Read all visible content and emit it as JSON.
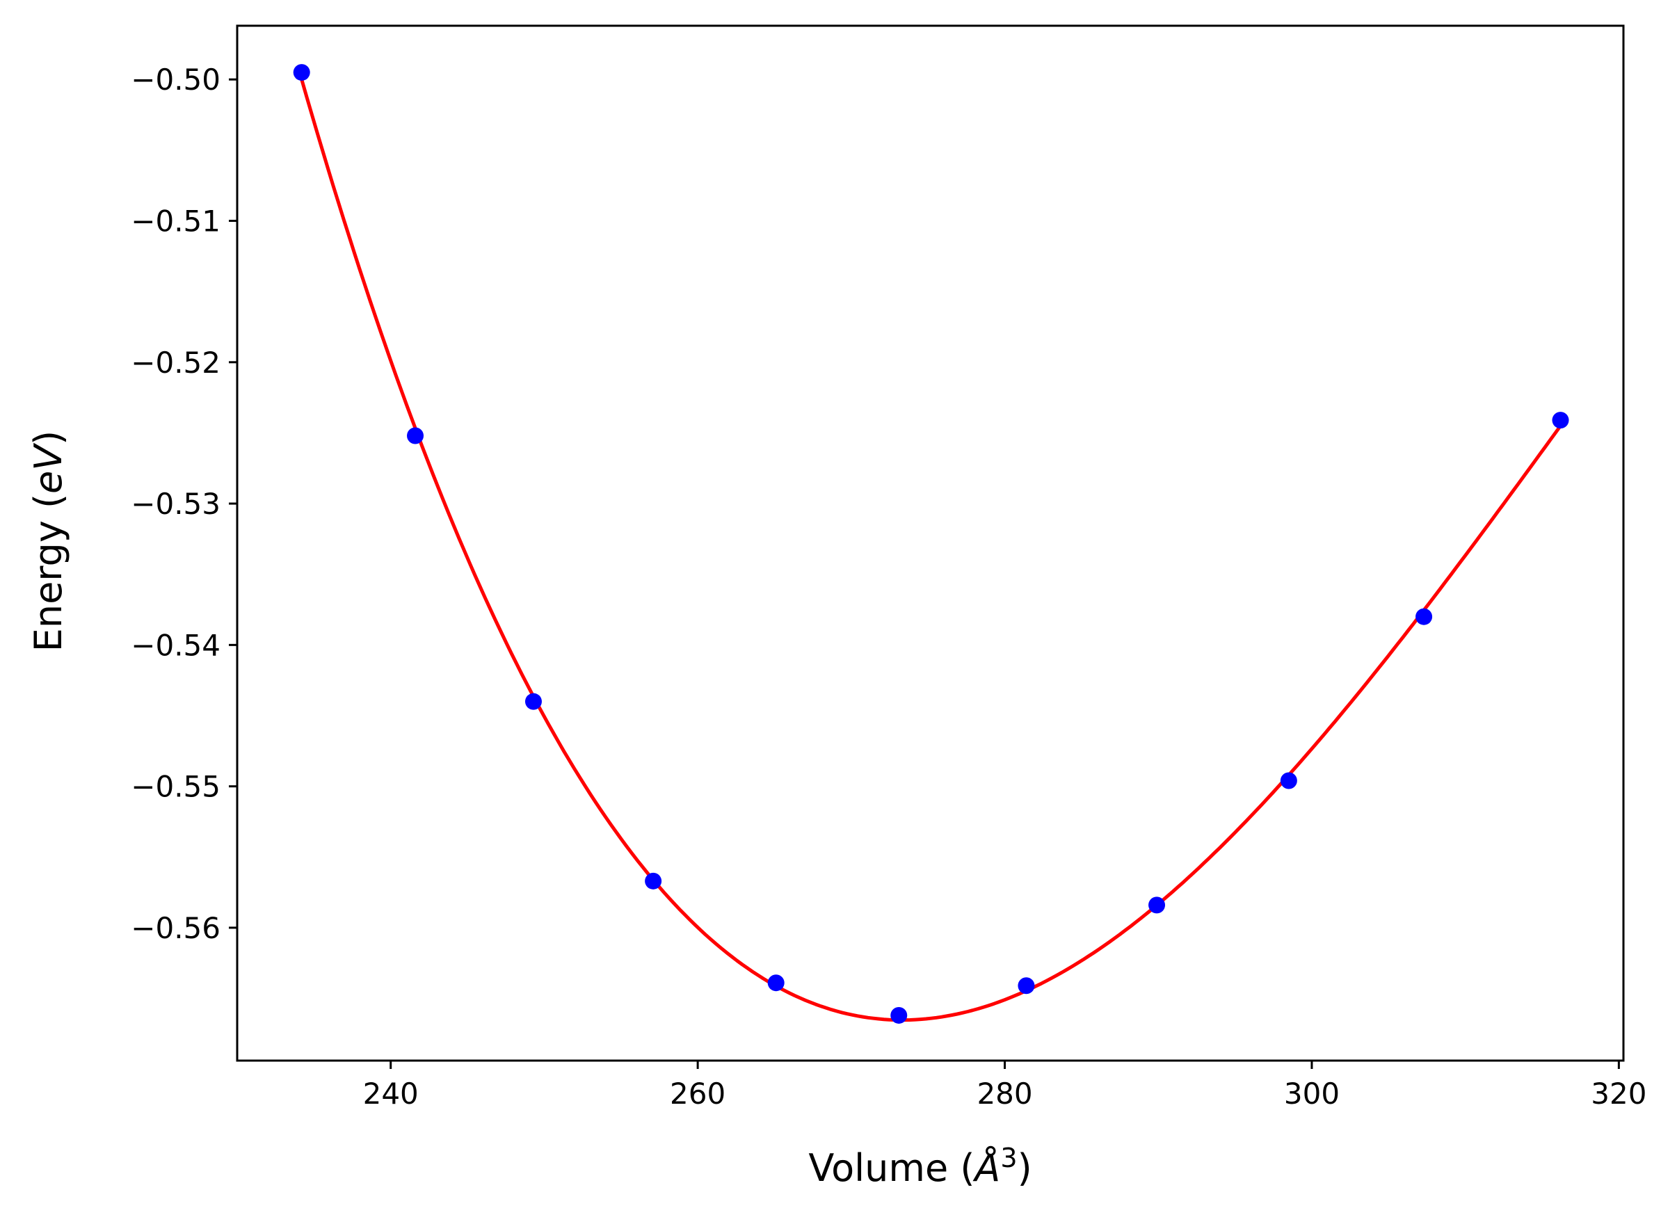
{
  "chart_data": {
    "type": "line",
    "title": "",
    "xlabel": "Volume",
    "xlabel_unit": "Å",
    "xlabel_unit_exp": "3",
    "ylabel": "Energy",
    "ylabel_unit": "eV",
    "xlim": [
      230,
      320.3
    ],
    "ylim": [
      -0.5694,
      -0.4962
    ],
    "xticks": [
      240,
      260,
      280,
      300,
      320
    ],
    "yticks": [
      -0.5,
      -0.51,
      -0.52,
      -0.53,
      -0.54,
      -0.55,
      -0.56
    ],
    "grid": false,
    "legend": "none",
    "series": [
      {
        "kind": "fit-curve",
        "color": "#ff0000",
        "fit_from": "points"
      },
      {
        "kind": "points",
        "color": "#0000ff",
        "x": [
          234.2,
          241.6,
          249.3,
          257.1,
          265.1,
          273.1,
          281.4,
          289.9,
          298.5,
          307.3,
          316.2
        ],
        "y": [
          -0.4995,
          -0.5252,
          -0.544,
          -0.5567,
          -0.5639,
          -0.5662,
          -0.5641,
          -0.5584,
          -0.5496,
          -0.538,
          -0.5241
        ]
      }
    ]
  }
}
